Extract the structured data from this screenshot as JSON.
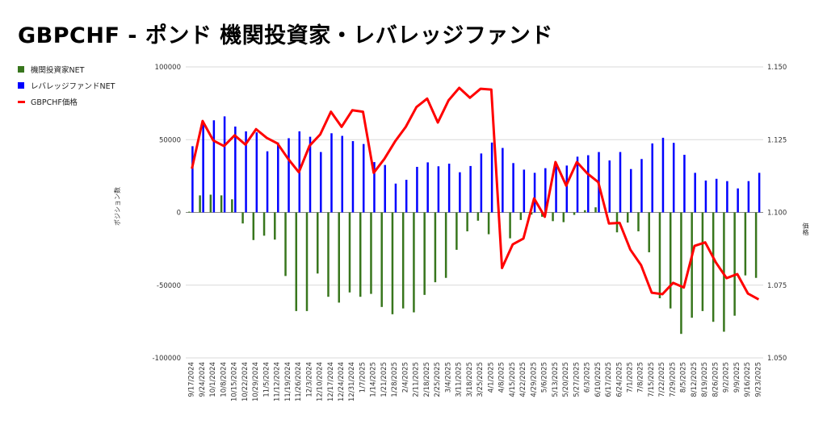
{
  "title": "GBPCHF - ポンド 機関投資家・レバレッジファンド",
  "chart_data": {
    "type": "bar+line",
    "title": "GBPCHF - ポンド 機関投資家・レバレッジファンド",
    "legend_position": "top-left",
    "ylabel": "ポジション数",
    "y2label": "価格",
    "ylim": [
      -100000,
      100000
    ],
    "y2lim": [
      1.05,
      1.15
    ],
    "yticks": [
      "100000",
      "50000",
      "0",
      "-50000",
      "-100000"
    ],
    "y2ticks": [
      "1.150",
      "1.125",
      "1.100",
      "1.075",
      "1.050"
    ],
    "grid": true,
    "categories": [
      "9/17/2024",
      "9/24/2024",
      "10/1/2024",
      "10/8/2024",
      "10/15/2024",
      "10/22/2024",
      "10/29/2024",
      "11/5/2024",
      "11/12/2024",
      "11/19/2024",
      "11/26/2024",
      "12/3/2024",
      "12/10/2024",
      "12/17/2024",
      "12/24/2024",
      "12/31/2024",
      "1/7/2025",
      "1/14/2025",
      "1/21/2025",
      "1/28/2025",
      "2/4/2025",
      "2/11/2025",
      "2/18/2025",
      "2/25/2025",
      "3/4/2025",
      "3/11/2025",
      "3/18/2025",
      "3/25/2025",
      "4/1/2025",
      "4/8/2025",
      "4/15/2025",
      "4/22/2025",
      "4/29/2025",
      "5/6/2025",
      "5/13/2025",
      "5/20/2025",
      "5/27/2025",
      "6/3/2025",
      "6/10/2025",
      "6/17/2025",
      "6/24/2025",
      "7/1/2025",
      "7/8/2025",
      "7/15/2025",
      "7/22/2025",
      "7/29/2025",
      "8/5/2025",
      "8/12/2025",
      "8/19/2025",
      "8/26/2025",
      "9/2/2025",
      "9/9/2025",
      "9/16/2025",
      "9/23/2025"
    ],
    "series": [
      {
        "name": "機関投資家NET",
        "type": "bar",
        "axis": "left",
        "color": "#38761d",
        "values": [
          500,
          11700,
          12200,
          11700,
          9000,
          -7600,
          -19000,
          -16000,
          -18700,
          -43700,
          -67800,
          -67800,
          -42000,
          -58000,
          -62000,
          -55000,
          -58000,
          -56000,
          -65000,
          -70000,
          -66000,
          -68700,
          -56700,
          -48000,
          -45000,
          -25700,
          -13000,
          -5700,
          -15000,
          0,
          -17800,
          -5200,
          -1500,
          -3000,
          -6000,
          -6700,
          -1700,
          1500,
          3500,
          0,
          -13700,
          -7000,
          -13000,
          -27400,
          -59000,
          -66000,
          -83500,
          -72400,
          -67800,
          -75200,
          -82000,
          -71000,
          -43300,
          -45000
        ]
      },
      {
        "name": "レバレッジファンドNET",
        "type": "bar",
        "axis": "left",
        "color": "#0000ff",
        "values": [
          45500,
          61500,
          63300,
          66000,
          59000,
          55700,
          55000,
          42000,
          48000,
          51000,
          55700,
          52000,
          41500,
          54400,
          52600,
          49000,
          47000,
          34600,
          32600,
          19800,
          22400,
          31300,
          34400,
          31700,
          33500,
          27600,
          31900,
          40500,
          48000,
          44300,
          33900,
          29400,
          27200,
          30400,
          31700,
          32200,
          38300,
          39300,
          41500,
          35700,
          41500,
          29800,
          36700,
          47400,
          51300,
          47800,
          39600,
          27200,
          21900,
          23100,
          21500,
          16500,
          21500,
          27200
        ]
      },
      {
        "name": "GBPCHF価格",
        "type": "line",
        "axis": "right",
        "color": "#ff0000",
        "values": [
          1.115,
          1.1314,
          1.1247,
          1.1228,
          1.1265,
          1.1233,
          1.1286,
          1.1256,
          1.1237,
          1.1184,
          1.1138,
          1.1229,
          1.1268,
          1.1346,
          1.1294,
          1.1351,
          1.1346,
          1.1136,
          1.1184,
          1.1244,
          1.1294,
          1.1362,
          1.1391,
          1.1309,
          1.1385,
          1.1428,
          1.1394,
          1.1425,
          1.1422,
          1.0809,
          1.089,
          1.091,
          1.1048,
          1.0985,
          1.1173,
          1.1092,
          1.1173,
          1.1133,
          1.1104,
          1.0962,
          1.0964,
          1.0872,
          1.0819,
          1.0724,
          1.0719,
          1.0758,
          1.0742,
          1.0885,
          1.0897,
          1.0828,
          1.0774,
          1.0788,
          1.0721,
          1.0701
        ]
      }
    ]
  }
}
